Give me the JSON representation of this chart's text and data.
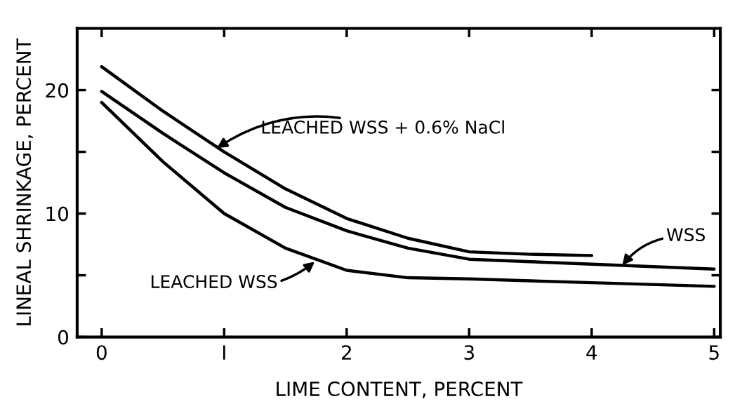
{
  "chart_data": {
    "type": "line",
    "xlabel": "LIME CONTENT, PERCENT",
    "ylabel": "LINEAL SHRINKAGE, PERCENT",
    "xlim": [
      -0.2,
      5.05
    ],
    "ylim": [
      0,
      25
    ],
    "xticks": [
      0,
      {
        "value": 1,
        "label": "I"
      },
      2,
      3,
      4,
      5
    ],
    "yticks": [
      0,
      {
        "value": 5,
        "label": null
      },
      10,
      {
        "value": 15,
        "label": null
      },
      20
    ],
    "grid": false,
    "marker": "none",
    "line_style": "solid",
    "series": [
      {
        "color": "#000000",
        "x": [
          0,
          0.5,
          1,
          1.5,
          2,
          2.5,
          3,
          3.5,
          4
        ],
        "values": [
          21.9,
          18.3,
          15.0,
          12.0,
          9.6,
          8.0,
          6.9,
          6.7,
          6.6
        ]
      },
      {
        "color": "#000000",
        "x": [
          0,
          0.5,
          1,
          1.5,
          2,
          2.5,
          3,
          3.5,
          4,
          4.5,
          5
        ],
        "values": [
          19.9,
          16.5,
          13.3,
          10.5,
          8.6,
          7.2,
          6.3,
          6.1,
          5.9,
          5.7,
          5.5
        ]
      },
      {
        "color": "#000000",
        "x": [
          0,
          0.5,
          1,
          1.5,
          2,
          2.5,
          3,
          4,
          5
        ],
        "values": [
          19.0,
          14.2,
          10.0,
          7.2,
          5.4,
          4.8,
          4.7,
          4.4,
          4.1
        ]
      }
    ],
    "annotations": [
      {
        "text": "LEACHED WSS + 0.6% NaCl",
        "x": 0.94,
        "y": 15.3
      },
      {
        "text": "WSS",
        "x": 4.25,
        "y": 5.8
      },
      {
        "text": "LEACHED WSS",
        "x": 1.74,
        "y": 6.1
      }
    ]
  }
}
